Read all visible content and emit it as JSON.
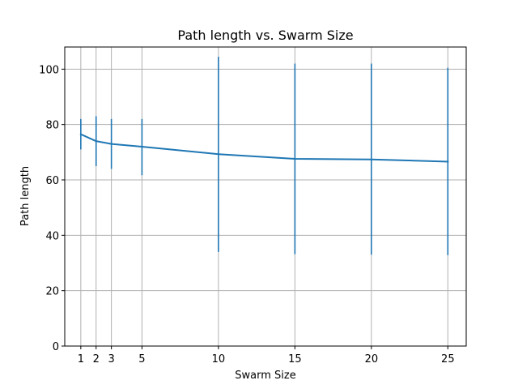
{
  "chart_data": {
    "type": "line",
    "title": "Path length vs. Swarm Size",
    "xlabel": "Swarm Size",
    "ylabel": "Path length",
    "x": [
      1,
      2,
      3,
      5,
      10,
      15,
      20,
      25
    ],
    "xlim": [
      -0.05,
      26.2
    ],
    "ylim": [
      0,
      108
    ],
    "xticks": [
      1,
      2,
      3,
      5,
      10,
      15,
      20,
      25
    ],
    "yticks": [
      0,
      20,
      40,
      60,
      80,
      100
    ],
    "grid": true,
    "series": [
      {
        "values": [
          76.5,
          74,
          73,
          72,
          69.3,
          67.6,
          67.4,
          66.6
        ],
        "error_low": [
          71,
          65,
          64,
          61.7,
          34,
          33.2,
          33,
          32.8
        ],
        "error_high": [
          82,
          83,
          82,
          82,
          104.5,
          102,
          102,
          100.5
        ],
        "color": "#1f77b4"
      }
    ]
  }
}
